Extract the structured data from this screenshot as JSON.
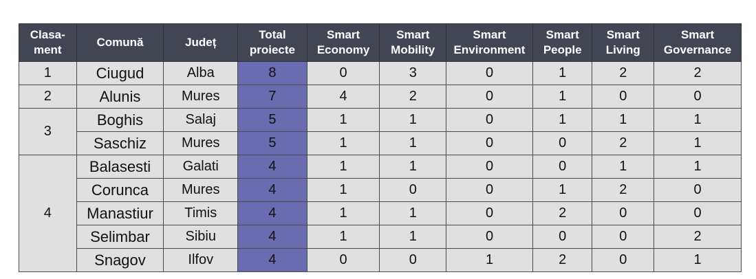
{
  "table": {
    "headers": [
      {
        "key": "rank",
        "lines": [
          "Clasa-",
          "ment"
        ]
      },
      {
        "key": "commune",
        "lines": [
          "Comună"
        ]
      },
      {
        "key": "county",
        "lines": [
          "Județ"
        ]
      },
      {
        "key": "total",
        "lines": [
          "Total",
          "proiecte"
        ]
      },
      {
        "key": "economy",
        "lines": [
          "Smart",
          "Economy"
        ]
      },
      {
        "key": "mobility",
        "lines": [
          "Smart",
          "Mobility"
        ]
      },
      {
        "key": "environment",
        "lines": [
          "Smart",
          "Environment"
        ]
      },
      {
        "key": "people",
        "lines": [
          "Smart",
          "People"
        ]
      },
      {
        "key": "living",
        "lines": [
          "Smart",
          "Living"
        ]
      },
      {
        "key": "governance",
        "lines": [
          "Smart",
          "Governance"
        ]
      }
    ],
    "rows": [
      {
        "rank": "1",
        "rank_span": 1,
        "commune": "Ciugud",
        "county": "Alba",
        "total": "8",
        "economy": "0",
        "mobility": "3",
        "environment": "0",
        "people": "1",
        "living": "2",
        "governance": "2"
      },
      {
        "rank": "2",
        "rank_span": 1,
        "commune": "Alunis",
        "county": "Mures",
        "total": "7",
        "economy": "4",
        "mobility": "2",
        "environment": "0",
        "people": "1",
        "living": "0",
        "governance": "0"
      },
      {
        "rank": "3",
        "rank_span": 2,
        "commune": "Boghis",
        "county": "Salaj",
        "total": "5",
        "economy": "1",
        "mobility": "1",
        "environment": "0",
        "people": "1",
        "living": "1",
        "governance": "1"
      },
      {
        "rank": null,
        "rank_span": 0,
        "commune": "Saschiz",
        "county": "Mures",
        "total": "5",
        "economy": "1",
        "mobility": "1",
        "environment": "0",
        "people": "0",
        "living": "2",
        "governance": "1"
      },
      {
        "rank": "4",
        "rank_span": 5,
        "commune": "Balasesti",
        "county": "Galati",
        "total": "4",
        "economy": "1",
        "mobility": "1",
        "environment": "0",
        "people": "0",
        "living": "1",
        "governance": "1"
      },
      {
        "rank": null,
        "rank_span": 0,
        "commune": "Corunca",
        "county": "Mures",
        "total": "4",
        "economy": "1",
        "mobility": "0",
        "environment": "0",
        "people": "1",
        "living": "2",
        "governance": "0"
      },
      {
        "rank": null,
        "rank_span": 0,
        "commune": "Manastiur",
        "county": "Timis",
        "total": "4",
        "economy": "1",
        "mobility": "1",
        "environment": "0",
        "people": "2",
        "living": "0",
        "governance": "0"
      },
      {
        "rank": null,
        "rank_span": 0,
        "commune": "Selimbar",
        "county": "Sibiu",
        "total": "4",
        "economy": "1",
        "mobility": "1",
        "environment": "0",
        "people": "0",
        "living": "0",
        "governance": "2"
      },
      {
        "rank": null,
        "rank_span": 0,
        "commune": "Snagov",
        "county": "Ilfov",
        "total": "4",
        "economy": "0",
        "mobility": "0",
        "environment": "1",
        "people": "2",
        "living": "0",
        "governance": "1"
      }
    ]
  },
  "colors": {
    "header_bg": "#424653",
    "header_text": "#ffffff",
    "cell_bg": "#e0e0e0",
    "total_highlight": "#6a6bb0"
  }
}
